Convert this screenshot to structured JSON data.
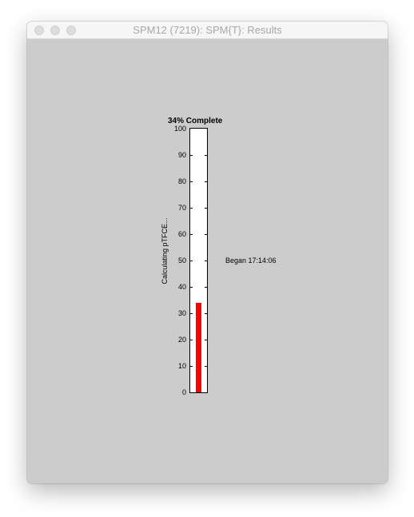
{
  "window": {
    "title": "SPM12 (7219): SPM{T}: Results"
  },
  "progress": {
    "heading": "34% Complete",
    "percent": 34,
    "ylabel": "Calculating pTFCE...",
    "began": "Began 17:14:06",
    "fill_color": "#ff0000",
    "ticks": [
      "0",
      "10",
      "20",
      "30",
      "40",
      "50",
      "60",
      "70",
      "80",
      "90",
      "100"
    ]
  }
}
